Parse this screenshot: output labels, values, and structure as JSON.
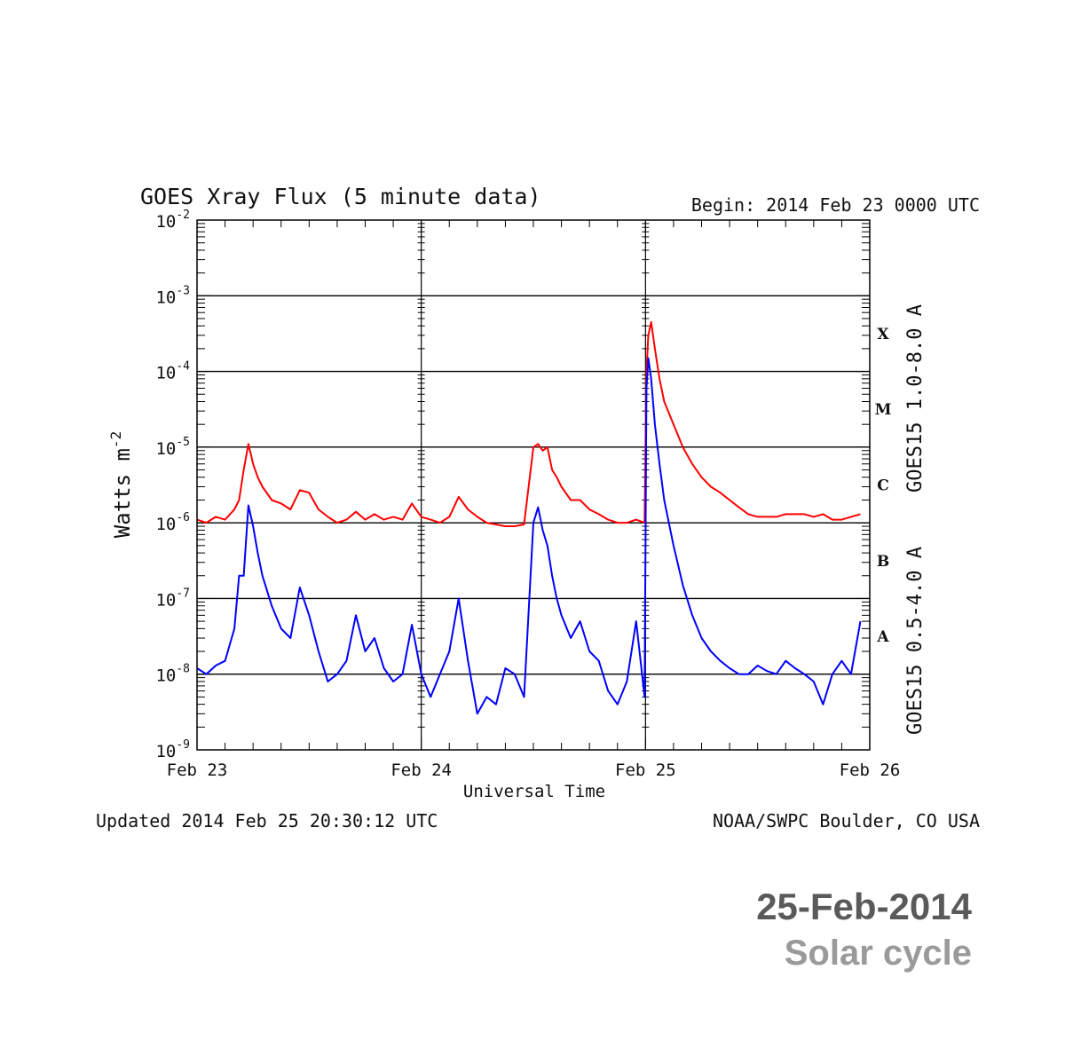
{
  "chart_data": {
    "type": "line",
    "title": "GOES Xray Flux (5 minute data)",
    "begin_label": "Begin:  2014 Feb 23 0000 UTC",
    "xlabel": "Universal Time",
    "ylabel": "Watts m",
    "ylabel_sup": "-2",
    "yscale": "log",
    "xlim": [
      0,
      72
    ],
    "ylim": [
      1e-09,
      0.01
    ],
    "x_ticks": [
      {
        "x": 0,
        "label": "Feb 23"
      },
      {
        "x": 24,
        "label": "Feb 24"
      },
      {
        "x": 48,
        "label": "Feb 25"
      },
      {
        "x": 72,
        "label": "Feb 26"
      }
    ],
    "y_ticks": [
      {
        "exp": -2,
        "base": "10",
        "sup": "-2"
      },
      {
        "exp": -3,
        "base": "10",
        "sup": "-3"
      },
      {
        "exp": -4,
        "base": "10",
        "sup": "-4"
      },
      {
        "exp": -5,
        "base": "10",
        "sup": "-5"
      },
      {
        "exp": -6,
        "base": "10",
        "sup": "-6"
      },
      {
        "exp": -7,
        "base": "10",
        "sup": "-7"
      },
      {
        "exp": -8,
        "base": "10",
        "sup": "-8"
      },
      {
        "exp": -9,
        "base": "10",
        "sup": "-9"
      }
    ],
    "flare_classes": [
      {
        "label": "X",
        "center_exp": -3.5
      },
      {
        "label": "M",
        "center_exp": -4.5
      },
      {
        "label": "C",
        "center_exp": -5.5
      },
      {
        "label": "B",
        "center_exp": -6.5
      },
      {
        "label": "A",
        "center_exp": -7.5
      }
    ],
    "grid": "horizontal lines at each decade from 1e-7 to 1e-3",
    "series": [
      {
        "name": "GOES15 1.0-8.0 A",
        "color": "#ff0000",
        "x": [
          0,
          1,
          2,
          3,
          4,
          4.5,
          5,
          5.5,
          6,
          6.5,
          7,
          8,
          9,
          10,
          11,
          12,
          13,
          14,
          15,
          16,
          17,
          18,
          19,
          20,
          21,
          22,
          23,
          24,
          25,
          26,
          27,
          28,
          29,
          30,
          31,
          32,
          33,
          34,
          35,
          36,
          36.5,
          37,
          37.5,
          38,
          38.5,
          39,
          40,
          41,
          42,
          43,
          44,
          45,
          46,
          47,
          47.9,
          48.1,
          48.3,
          48.6,
          49,
          49.5,
          50,
          51,
          52,
          53,
          54,
          55,
          56,
          57,
          58,
          59,
          60,
          61,
          62,
          63,
          64,
          65,
          66,
          67,
          68,
          69,
          70,
          71
        ],
        "y": [
          1.1e-06,
          1e-06,
          1.2e-06,
          1.1e-06,
          1.5e-06,
          2e-06,
          5e-06,
          1.1e-05,
          6e-06,
          4e-06,
          3e-06,
          2e-06,
          1.8e-06,
          1.5e-06,
          2.7e-06,
          2.5e-06,
          1.5e-06,
          1.2e-06,
          1e-06,
          1.1e-06,
          1.4e-06,
          1.1e-06,
          1.3e-06,
          1.1e-06,
          1.2e-06,
          1.1e-06,
          1.8e-06,
          1.2e-06,
          1.1e-06,
          1e-06,
          1.2e-06,
          2.2e-06,
          1.5e-06,
          1.2e-06,
          1e-06,
          9.5e-07,
          9e-07,
          9e-07,
          9.5e-07,
          1e-05,
          1.1e-05,
          9e-06,
          1e-05,
          5e-06,
          4e-06,
          3e-06,
          2e-06,
          2e-06,
          1.5e-06,
          1.3e-06,
          1.1e-06,
          1e-06,
          1e-06,
          1.1e-06,
          1e-06,
          0.0001,
          0.0003,
          0.00045,
          0.0002,
          8e-05,
          4e-05,
          2e-05,
          1e-05,
          6e-06,
          4e-06,
          3e-06,
          2.5e-06,
          2e-06,
          1.6e-06,
          1.3e-06,
          1.2e-06,
          1.2e-06,
          1.2e-06,
          1.3e-06,
          1.3e-06,
          1.3e-06,
          1.2e-06,
          1.3e-06,
          1.1e-06,
          1.1e-06,
          1.2e-06,
          1.3e-06
        ]
      },
      {
        "name": "GOES15 0.5-4.0 A",
        "color": "#0000ff",
        "x": [
          0,
          1,
          2,
          3,
          4,
          4.5,
          5,
          5.5,
          6,
          6.5,
          7,
          8,
          9,
          10,
          11,
          12,
          13,
          14,
          15,
          16,
          17,
          18,
          19,
          20,
          21,
          22,
          23,
          24,
          25,
          26,
          27,
          28,
          29,
          30,
          31,
          32,
          33,
          34,
          35,
          36,
          36.5,
          37,
          37.5,
          38,
          38.5,
          39,
          40,
          41,
          42,
          43,
          44,
          45,
          46,
          47,
          47.9,
          48.1,
          48.3,
          48.6,
          49,
          49.5,
          50,
          51,
          52,
          53,
          54,
          55,
          56,
          57,
          58,
          59,
          60,
          61,
          62,
          63,
          64,
          65,
          66,
          67,
          68,
          69,
          70,
          71
        ],
        "y": [
          1.2e-08,
          1e-08,
          1.3e-08,
          1.5e-08,
          4e-08,
          2e-07,
          2e-07,
          1.7e-06,
          9e-07,
          4e-07,
          2e-07,
          8e-08,
          4e-08,
          3e-08,
          1.4e-07,
          6e-08,
          2e-08,
          8e-09,
          1e-08,
          1.5e-08,
          6e-08,
          2e-08,
          3e-08,
          1.2e-08,
          8e-09,
          1e-08,
          4.5e-08,
          1e-08,
          5e-09,
          1e-08,
          2e-08,
          1e-07,
          1.5e-08,
          3e-09,
          5e-09,
          4e-09,
          1.2e-08,
          1e-08,
          5e-09,
          1e-06,
          1.6e-06,
          8e-07,
          5e-07,
          2e-07,
          1e-07,
          6e-08,
          3e-08,
          5e-08,
          2e-08,
          1.5e-08,
          6e-09,
          4e-09,
          8e-09,
          5e-08,
          5e-09,
          6e-05,
          0.00015,
          8e-05,
          2e-05,
          6e-06,
          2e-06,
          5e-07,
          1.5e-07,
          6e-08,
          3e-08,
          2e-08,
          1.5e-08,
          1.2e-08,
          1e-08,
          1e-08,
          1.3e-08,
          1.1e-08,
          1e-08,
          1.5e-08,
          1.2e-08,
          1e-08,
          8e-09,
          4e-09,
          1e-08,
          1.5e-08,
          1e-08,
          5e-08
        ]
      }
    ]
  },
  "footer": {
    "updated": "Updated 2014 Feb 25 20:30:12 UTC",
    "source": "NOAA/SWPC Boulder, CO USA"
  },
  "caption": {
    "date": "25-Feb-2014",
    "subtitle": "Solar cycle"
  }
}
